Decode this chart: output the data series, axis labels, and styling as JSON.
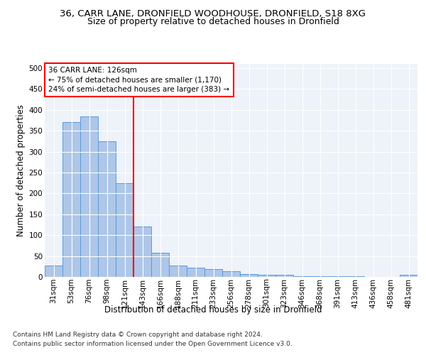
{
  "title_line1": "36, CARR LANE, DRONFIELD WOODHOUSE, DRONFIELD, S18 8XG",
  "title_line2": "Size of property relative to detached houses in Dronfield",
  "xlabel": "Distribution of detached houses by size in Dronfield",
  "ylabel": "Number of detached properties",
  "categories": [
    "31sqm",
    "53sqm",
    "76sqm",
    "98sqm",
    "121sqm",
    "143sqm",
    "166sqm",
    "188sqm",
    "211sqm",
    "233sqm",
    "256sqm",
    "278sqm",
    "301sqm",
    "323sqm",
    "346sqm",
    "368sqm",
    "391sqm",
    "413sqm",
    "436sqm",
    "458sqm",
    "481sqm"
  ],
  "values": [
    28,
    370,
    385,
    325,
    225,
    120,
    58,
    28,
    22,
    18,
    14,
    7,
    5,
    5,
    2,
    2,
    2,
    2,
    0,
    0,
    5
  ],
  "bar_color": "#aec6e8",
  "bar_edge_color": "#5b9bd5",
  "vline_x_index": 4,
  "vline_color": "red",
  "annotation_text": "36 CARR LANE: 126sqm\n← 75% of detached houses are smaller (1,170)\n24% of semi-detached houses are larger (383) →",
  "annotation_box_color": "white",
  "annotation_box_edge_color": "red",
  "ylim": [
    0,
    510
  ],
  "yticks": [
    0,
    50,
    100,
    150,
    200,
    250,
    300,
    350,
    400,
    450,
    500
  ],
  "background_color": "#eef2f9",
  "grid_color": "white",
  "footer_line1": "Contains HM Land Registry data © Crown copyright and database right 2024.",
  "footer_line2": "Contains public sector information licensed under the Open Government Licence v3.0.",
  "title_fontsize": 9.5,
  "subtitle_fontsize": 9,
  "axis_label_fontsize": 8.5,
  "tick_fontsize": 7.5,
  "footer_fontsize": 6.5
}
